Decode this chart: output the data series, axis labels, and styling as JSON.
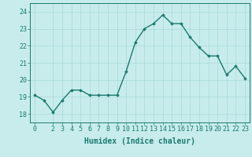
{
  "x": [
    0,
    1,
    2,
    3,
    4,
    5,
    6,
    7,
    8,
    9,
    10,
    11,
    12,
    13,
    14,
    15,
    16,
    17,
    18,
    19,
    20,
    21,
    22,
    23
  ],
  "y": [
    19.1,
    18.8,
    18.1,
    18.8,
    19.4,
    19.4,
    19.1,
    19.1,
    19.1,
    19.1,
    20.5,
    22.2,
    23.0,
    23.3,
    23.8,
    23.3,
    23.3,
    22.5,
    21.9,
    21.4,
    21.4,
    20.3,
    20.8,
    20.1
  ],
  "line_color": "#1a7a6e",
  "bg_color": "#c8ecec",
  "grid_color": "#a8d8d8",
  "xlabel": "Humidex (Indice chaleur)",
  "ylim": [
    17.5,
    24.5
  ],
  "xlim": [
    -0.5,
    23.5
  ],
  "yticks": [
    18,
    19,
    20,
    21,
    22,
    23,
    24
  ],
  "xticks": [
    0,
    2,
    3,
    4,
    5,
    6,
    7,
    8,
    9,
    10,
    11,
    12,
    13,
    14,
    15,
    16,
    17,
    18,
    19,
    20,
    21,
    22,
    23
  ],
  "marker": "D",
  "markersize": 1.8,
  "linewidth": 1.0,
  "xlabel_fontsize": 7,
  "tick_fontsize": 6,
  "title": ""
}
